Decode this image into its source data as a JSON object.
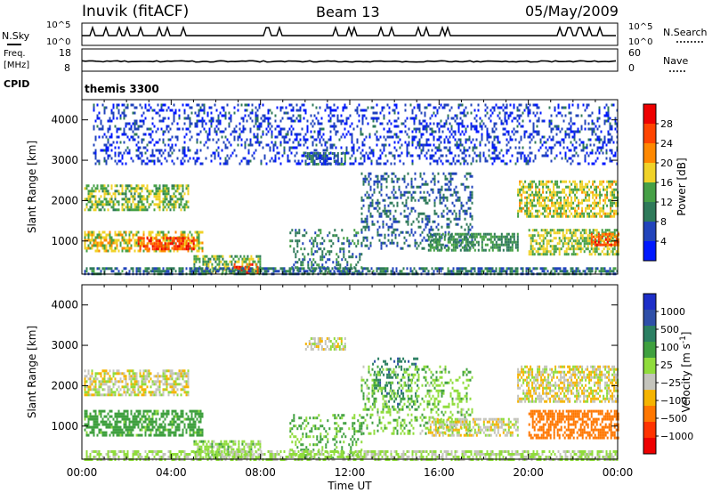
{
  "header": {
    "site": "Inuvik (fitACF)",
    "beam": "Beam 13",
    "date": "05/May/2009"
  },
  "top_panels": {
    "nsky_label": "N.Sky",
    "nsearch_label": "N.Search",
    "nsky_ticks": [
      "10^5",
      "10^0"
    ],
    "nsearch_ticks": [
      "10^5",
      "10^0"
    ],
    "freq_label_1": "Freq.",
    "freq_label_2": "[MHz]",
    "freq_ticks": [
      "18",
      "8"
    ],
    "nave_label": "Nave",
    "nave_ticks": [
      "60",
      "0"
    ],
    "cpid_label": "CPID",
    "cpid_value": "themis 3300"
  },
  "colors": {
    "power_scale": [
      "#0018ff",
      "#2244bb",
      "#2f7a5a",
      "#46a046",
      "#f0d228",
      "#ff8800",
      "#ff4400",
      "#ee0000"
    ],
    "velocity_scale": [
      "#ee0000",
      "#ff3300",
      "#ff7700",
      "#f5b400",
      "#c4c4bc",
      "#90dc3c",
      "#3fa03f",
      "#2b7f62",
      "#2f4fa8",
      "#1d2ec8"
    ]
  },
  "chart_data": [
    {
      "type": "heatmap",
      "title": "",
      "ylabel": "Slant Range [km]",
      "xlabel": "",
      "x_ticks": [
        "00:00",
        "04:00",
        "08:00",
        "12:00",
        "16:00",
        "20:00",
        "00:00"
      ],
      "x_range_hours": [
        0,
        24
      ],
      "y_range": [
        180,
        4500
      ],
      "y_ticks": [
        1000,
        2000,
        3000,
        4000
      ],
      "colorbar_label": "Power [dB]",
      "colorbar_ticks": [
        4,
        8,
        12,
        16,
        20,
        24,
        28
      ],
      "colorbar_range": [
        0,
        32
      ],
      "echo_regions": [
        {
          "t0": 0.1,
          "t1": 4.8,
          "r0": 1800,
          "r1": 2400,
          "value": 15
        },
        {
          "t0": 0.1,
          "t1": 5.4,
          "r0": 750,
          "r1": 1250,
          "value": 18
        },
        {
          "t0": 2.5,
          "t1": 5.0,
          "r0": 800,
          "r1": 1100,
          "value": 26
        },
        {
          "t0": 5.0,
          "t1": 8.0,
          "r0": 200,
          "r1": 650,
          "value": 14
        },
        {
          "t0": 6.8,
          "t1": 7.9,
          "r0": 200,
          "r1": 450,
          "value": 26
        },
        {
          "t0": 10.0,
          "t1": 11.8,
          "r0": 2900,
          "r1": 3200,
          "value": 9
        },
        {
          "t0": 9.3,
          "t1": 12.5,
          "r0": 200,
          "r1": 1300,
          "value": 10
        },
        {
          "t0": 12.5,
          "t1": 17.5,
          "r0": 800,
          "r1": 2700,
          "value": 8
        },
        {
          "t0": 15.5,
          "t1": 19.5,
          "r0": 800,
          "r1": 1200,
          "value": 12
        },
        {
          "t0": 19.5,
          "t1": 24.0,
          "r0": 1600,
          "r1": 2500,
          "value": 17
        },
        {
          "t0": 20.0,
          "t1": 24.0,
          "r0": 700,
          "r1": 1300,
          "value": 16
        },
        {
          "t0": 22.8,
          "t1": 24.0,
          "r0": 900,
          "r1": 1200,
          "value": 25
        },
        {
          "t0": 0.1,
          "t1": 24.0,
          "r0": 180,
          "r1": 350,
          "value": 9
        },
        {
          "t0": 0.5,
          "t1": 24.0,
          "r0": 2900,
          "r1": 4400,
          "value": 5
        }
      ]
    },
    {
      "type": "heatmap",
      "title": "",
      "ylabel": "Slant Range [km]",
      "xlabel": "Time UT",
      "x_ticks": [
        "00:00",
        "04:00",
        "08:00",
        "12:00",
        "16:00",
        "20:00",
        "00:00"
      ],
      "x_range_hours": [
        0,
        24
      ],
      "y_range": [
        180,
        4500
      ],
      "y_ticks": [
        1000,
        2000,
        3000,
        4000
      ],
      "colorbar_label": "Velocity [m s^-1]",
      "colorbar_ticks": [
        1000,
        500,
        100,
        25,
        -25,
        -100,
        -500,
        -1000
      ],
      "colorbar_range": [
        -1000,
        1000
      ],
      "echo_regions": [
        {
          "t0": 0.1,
          "t1": 4.8,
          "r0": 1800,
          "r1": 2400,
          "value": 0
        },
        {
          "t0": 0.1,
          "t1": 5.4,
          "r0": 750,
          "r1": 1400,
          "value": 150
        },
        {
          "t0": 5.0,
          "t1": 8.0,
          "r0": 200,
          "r1": 650,
          "value": 60
        },
        {
          "t0": 10.0,
          "t1": 11.8,
          "r0": 2900,
          "r1": 3200,
          "value": 0
        },
        {
          "t0": 9.3,
          "t1": 12.5,
          "r0": 200,
          "r1": 1300,
          "value": 120
        },
        {
          "t0": 13.0,
          "t1": 15.0,
          "r0": 1500,
          "r1": 2700,
          "value": 700
        },
        {
          "t0": 12.5,
          "t1": 17.5,
          "r0": 800,
          "r1": 2500,
          "value": 80
        },
        {
          "t0": 15.5,
          "t1": 19.5,
          "r0": 800,
          "r1": 1200,
          "value": 0
        },
        {
          "t0": 19.5,
          "t1": 24.0,
          "r0": 1600,
          "r1": 2500,
          "value": -10
        },
        {
          "t0": 20.0,
          "t1": 24.0,
          "r0": 700,
          "r1": 1400,
          "value": -200
        },
        {
          "t0": 0.1,
          "t1": 24.0,
          "r0": 180,
          "r1": 400,
          "value": 40
        }
      ]
    }
  ]
}
